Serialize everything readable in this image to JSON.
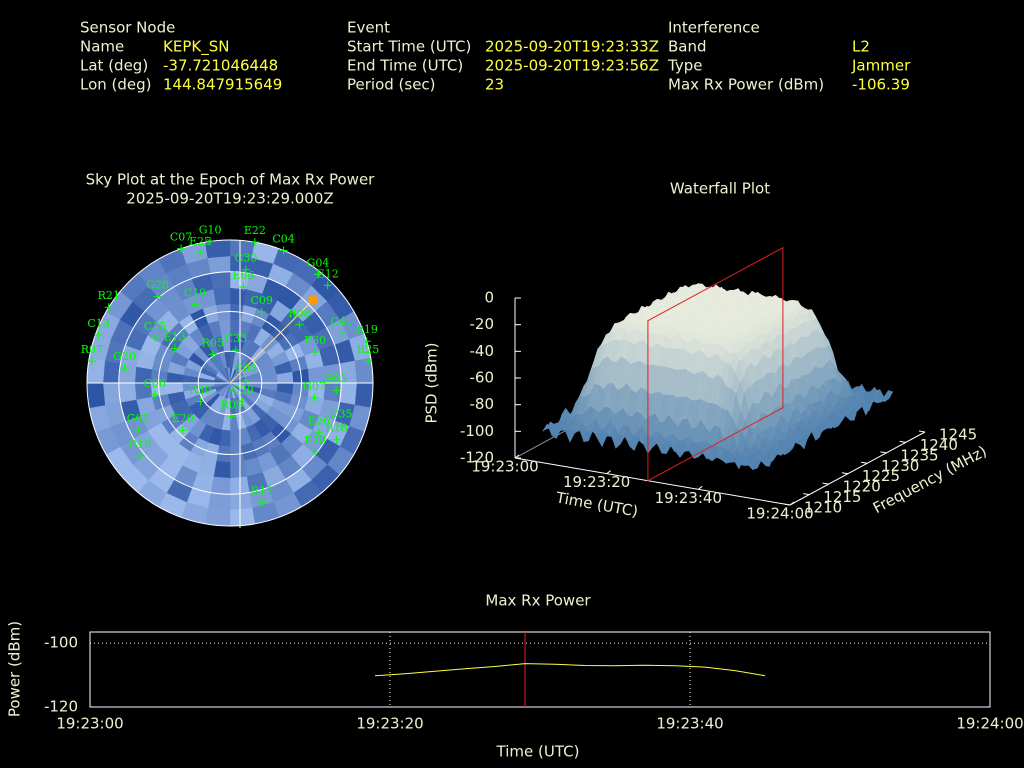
{
  "header": [
    {
      "title": "Sensor Node",
      "fields": [
        {
          "label": "Name",
          "value": "KEPK_SN"
        },
        {
          "label": "Lat (deg)",
          "value": "-37.721046448"
        },
        {
          "label": "Lon (deg)",
          "value": "144.847915649"
        }
      ]
    },
    {
      "title": "Event",
      "fields": [
        {
          "label": "Start Time (UTC)",
          "value": "2025-09-20T19:23:33Z"
        },
        {
          "label": "End Time (UTC)",
          "value": "2025-09-20T19:23:56Z"
        },
        {
          "label": "Period (sec)",
          "value": "23"
        }
      ]
    },
    {
      "title": "Interference",
      "fields": [
        {
          "label": "Band",
          "value": "L2"
        },
        {
          "label": "Type",
          "value": "Jammer"
        },
        {
          "label": "Max Rx Power (dBm)",
          "value": "-106.39"
        }
      ]
    }
  ],
  "chart_data": [
    {
      "type": "skyplot",
      "title": "Sky Plot at the Epoch of Max Rx Power",
      "subtitle": "2025-09-20T19:23:29.000Z",
      "rticks": [
        0,
        20,
        45,
        70
      ],
      "color": "#00ff00",
      "source_color": "#ff9900",
      "max_power_source": {
        "az": 45,
        "el": 16
      },
      "satellites": [
        {
          "name": "C07",
          "az": 340,
          "el": 0
        },
        {
          "name": "G10",
          "az": 352,
          "el": 0
        },
        {
          "name": "E22",
          "az": 10,
          "el": 0
        },
        {
          "name": "C04",
          "az": 22,
          "el": 0
        },
        {
          "name": "E25",
          "az": 347,
          "el": 6
        },
        {
          "name": "G30",
          "az": 8,
          "el": 18
        },
        {
          "name": "G04",
          "az": 39,
          "el": 2
        },
        {
          "name": "E12",
          "az": 45,
          "el": 3
        },
        {
          "name": "R21",
          "az": 302,
          "el": 0
        },
        {
          "name": "G28",
          "az": 320,
          "el": 19
        },
        {
          "name": "C19",
          "az": 336,
          "el": 36
        },
        {
          "name": "E06",
          "az": 8,
          "el": 29
        },
        {
          "name": "C09",
          "az": 24,
          "el": 41
        },
        {
          "name": "R08",
          "az": 50,
          "el": 33
        },
        {
          "name": "C41",
          "az": 66,
          "el": 13
        },
        {
          "name": "R19",
          "az": 73,
          "el": 0
        },
        {
          "name": "R25",
          "az": 81,
          "el": 2
        },
        {
          "name": "E30",
          "az": 70,
          "el": 33
        },
        {
          "name": "C13",
          "az": 290,
          "el": 2
        },
        {
          "name": "R07",
          "az": 279,
          "el": 2
        },
        {
          "name": "C15",
          "az": 301,
          "el": 35
        },
        {
          "name": "E13",
          "az": 302,
          "el": 49
        },
        {
          "name": "C33",
          "az": 10,
          "el": 69
        },
        {
          "name": "R05",
          "az": 329,
          "el": 69
        },
        {
          "name": "C08",
          "az": 79,
          "el": 80
        },
        {
          "name": "G20",
          "az": 278,
          "el": 23
        },
        {
          "name": "C06",
          "az": 261,
          "el": 42
        },
        {
          "name": "E05",
          "az": 94,
          "el": 23
        },
        {
          "name": "G07",
          "az": 100,
          "el": 36
        },
        {
          "name": "C20",
          "az": 146,
          "el": 76
        },
        {
          "name": "R09",
          "az": 177,
          "el": 69
        },
        {
          "name": "R30",
          "az": 238,
          "el": 68
        },
        {
          "name": "C35",
          "az": 111,
          "el": 15
        },
        {
          "name": "E26",
          "az": 119,
          "el": 26
        },
        {
          "name": "R18",
          "az": 118,
          "el": 14
        },
        {
          "name": "G02",
          "az": 243,
          "el": 25
        },
        {
          "name": "E20",
          "az": 225,
          "el": 48
        },
        {
          "name": "G18",
          "az": 231,
          "el": 17
        },
        {
          "name": "E28",
          "az": 129,
          "el": 21
        },
        {
          "name": "R17",
          "az": 165,
          "el": 12
        }
      ]
    },
    {
      "type": "waterfall",
      "title": "Waterfall Plot",
      "xlabel": "Time (UTC)",
      "ylabel": "Frequency (MHz)",
      "zlabel": "PSD (dBm)",
      "xlim": [
        "19:23:00",
        "19:24:00"
      ],
      "xticks": [
        "19:23:00",
        "19:23:20",
        "19:23:40",
        "19:24:00"
      ],
      "ylim": [
        1210,
        1245
      ],
      "yticks": [
        1210,
        1215,
        1220,
        1225,
        1230,
        1235,
        1240,
        1245
      ],
      "zlim": [
        -120,
        0
      ],
      "zticks": [
        -120,
        -100,
        -80,
        -60,
        -40,
        -20,
        0
      ],
      "marker_x": "19:23:29",
      "marker_color": "#e02020"
    },
    {
      "type": "line",
      "title": "Max Rx Power",
      "xlabel": "Time (UTC)",
      "ylabel": "Power (dBm)",
      "xlim": [
        "19:23:00",
        "19:24:00"
      ],
      "xticks": [
        "19:23:00",
        "19:23:20",
        "19:23:40",
        "19:24:00"
      ],
      "ylim": [
        -120,
        -96.5
      ],
      "yticks": [
        -100,
        -120
      ],
      "grid": true,
      "marker_x": "19:23:29",
      "marker_color": "#e02020",
      "x": [
        "19:23:19",
        "19:23:21",
        "19:23:23",
        "19:23:25",
        "19:23:27",
        "19:23:29",
        "19:23:31",
        "19:23:33",
        "19:23:35",
        "19:23:37",
        "19:23:39",
        "19:23:41",
        "19:23:43",
        "19:23:45"
      ],
      "series": [
        {
          "color": "#ffff40",
          "values": [
            -110.2,
            -109.6,
            -108.8,
            -108.0,
            -107.3,
            -106.4,
            -106.6,
            -107.0,
            -107.1,
            -106.9,
            -107.1,
            -107.5,
            -108.6,
            -110.2
          ]
        }
      ]
    }
  ]
}
